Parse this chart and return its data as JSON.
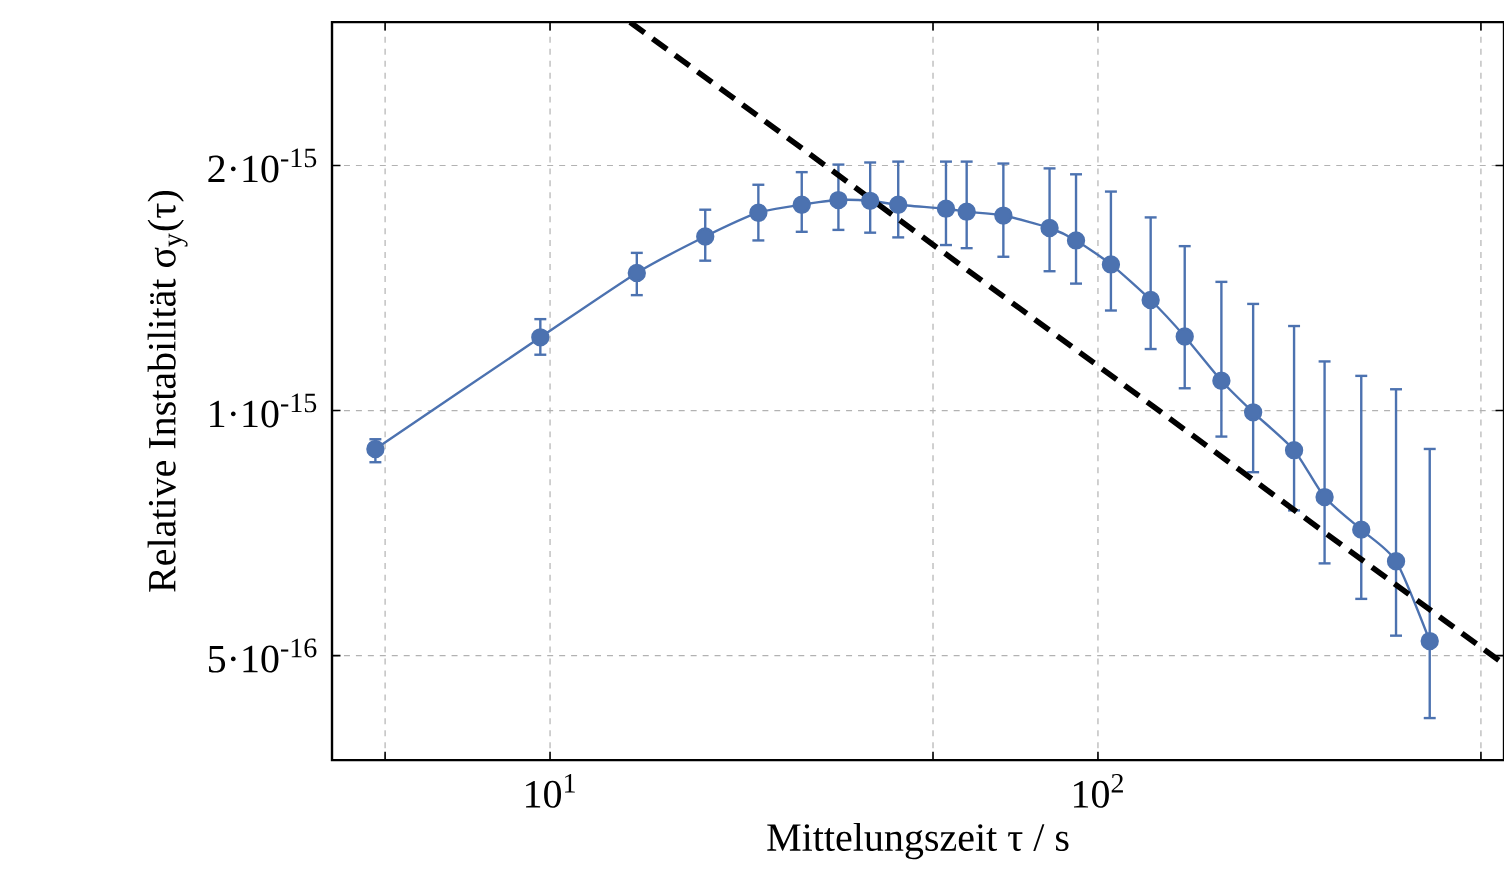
{
  "chart_data": {
    "type": "line",
    "xlabel": "Mittelungszeit τ / s",
    "ylabel": "Relative Instabilität σ$_{y}$(τ)",
    "log": "xy",
    "grid": true,
    "marker": "circle",
    "line_style": "solid",
    "xlim": [
      4.0,
      551
    ],
    "ylim": [
      3.72e-16,
      3e-15
    ],
    "xticks": [
      {
        "value": 5,
        "label": null
      },
      {
        "value": 10,
        "label": "10$^{1}$"
      },
      {
        "value": 50,
        "label": null
      },
      {
        "value": 100,
        "label": "10$^{2}$"
      },
      {
        "value": 500,
        "label": null
      }
    ],
    "yticks": [
      {
        "value": 5e-16,
        "label": "5·10$^{-16}$"
      },
      {
        "value": 1e-15,
        "label": "1·10$^{-15}$"
      },
      {
        "value": 2e-15,
        "label": "2·10$^{-15}$"
      }
    ],
    "series": [
      {
        "color": "#4c72b0",
        "x": [
          4.8,
          9.6,
          14.4,
          19.2,
          24,
          28.8,
          33.6,
          38.4,
          43.2,
          52.8,
          57.6,
          67.2,
          81.6,
          91.2,
          105.6,
          124.8,
          144,
          168,
          192,
          228,
          259.2,
          302.4,
          350,
          403.2
        ],
        "values": [
          8.97e-16,
          1.23e-15,
          1.476e-15,
          1.636e-15,
          1.75e-15,
          1.79e-15,
          1.814e-15,
          1.81e-15,
          1.79e-15,
          1.77e-15,
          1.755e-15,
          1.736e-15,
          1.676e-15,
          1.618e-15,
          1.512e-15,
          1.367e-15,
          1.233e-15,
          1.088e-15,
          9.95e-16,
          8.94e-16,
          7.83e-16,
          7.14e-16,
          6.53e-16,
          5.21e-16
        ],
        "errors": [
          [
            8.64e-16,
            9.22e-16
          ],
          [
            1.171e-15,
            1.295e-15
          ],
          [
            1.386e-15,
            1.562e-15
          ],
          [
            1.528e-15,
            1.765e-15
          ],
          [
            1.618e-15,
            1.894e-15
          ],
          [
            1.658e-15,
            1.963e-15
          ],
          [
            1.667e-15,
            2.005e-15
          ],
          [
            1.654e-15,
            2.017e-15
          ],
          [
            1.632e-15,
            2.022e-15
          ],
          [
            1.597e-15,
            2.022e-15
          ],
          [
            1.583e-15,
            2.022e-15
          ],
          [
            1.545e-15,
            2.011e-15
          ],
          [
            1.483e-15,
            1.984e-15
          ],
          [
            1.432e-15,
            1.951e-15
          ],
          [
            1.327e-15,
            1.858e-15
          ],
          [
            1.19e-15,
            1.727e-15
          ],
          [
            1.065e-15,
            1.592e-15
          ],
          [
            9.29e-16,
            1.439e-15
          ],
          [
            8.4e-16,
            1.352e-15
          ],
          [
            7.54e-16,
            1.27e-15
          ],
          [
            6.49e-16,
            1.149e-15
          ],
          [
            5.87e-16,
            1.103e-15
          ],
          [
            5.29e-16,
            1.062e-15
          ],
          [
            4.19e-16,
            8.97e-16
          ]
        ]
      },
      {
        "type": "line",
        "color": "#000000",
        "marker": "none",
        "line_style": "dashed",
        "x": [
          14,
          551
        ],
        "values": [
          3e-15,
          4.88e-16
        ]
      }
    ]
  }
}
